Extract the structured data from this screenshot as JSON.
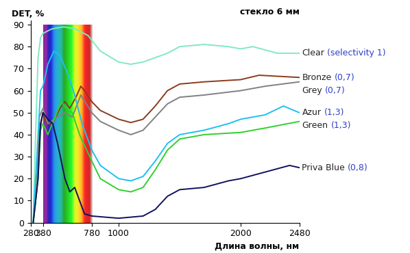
{
  "chart_data": {
    "type": "line",
    "title": "стекло 6 мм",
    "y_label": "DET, %",
    "x_label": "Длина волны, нм",
    "xlim": [
      280,
      2480
    ],
    "ylim": [
      0,
      92
    ],
    "xticks": [
      280,
      380,
      780,
      1000,
      2000,
      2480
    ],
    "yticks": [
      0,
      10,
      20,
      30,
      40,
      50,
      60,
      70,
      80,
      90
    ],
    "grid": false,
    "spectrum": {
      "x": [
        380,
        780
      ],
      "top": 90
    },
    "series": [
      {
        "name": "Clear",
        "selectivity_label": "(selectivity 1)",
        "color": "#7feabf",
        "x": [
          300,
          320,
          340,
          360,
          380,
          450,
          550,
          650,
          750,
          850,
          1000,
          1100,
          1200,
          1400,
          1500,
          1700,
          1900,
          2000,
          2100,
          2300,
          2480
        ],
        "values": [
          2,
          40,
          75,
          84,
          86,
          88,
          89,
          88,
          85,
          78,
          73,
          72,
          73,
          77,
          80,
          81,
          80,
          79,
          80,
          77,
          77
        ]
      },
      {
        "name": "Bronze",
        "selectivity_label": "(0,7)",
        "color": "#8b3a1a",
        "x": [
          300,
          330,
          350,
          380,
          400,
          450,
          520,
          560,
          600,
          650,
          690,
          720,
          780,
          850,
          1000,
          1100,
          1200,
          1300,
          1400,
          1500,
          1700,
          2000,
          2150,
          2480
        ],
        "values": [
          0,
          15,
          40,
          50,
          46,
          44,
          52,
          55,
          52,
          57,
          62,
          60,
          55,
          51,
          47,
          45.5,
          47,
          53,
          60,
          63,
          64,
          65,
          67,
          66
        ]
      },
      {
        "name": "Grey",
        "selectivity_label": "(0,7)",
        "color": "#808080",
        "x": [
          300,
          330,
          350,
          380,
          420,
          500,
          560,
          620,
          690,
          780,
          850,
          1000,
          1100,
          1200,
          1300,
          1400,
          1500,
          1700,
          2000,
          2200,
          2480
        ],
        "values": [
          0,
          20,
          48,
          52,
          45,
          48,
          50,
          48,
          58,
          50,
          46,
          42,
          40,
          42,
          48,
          54,
          57,
          58,
          60,
          62,
          64
        ]
      },
      {
        "name": "Azur",
        "selectivity_label": "(1,3)",
        "color": "#1ec0ef",
        "x": [
          300,
          330,
          360,
          380,
          420,
          470,
          520,
          580,
          640,
          700,
          780,
          850,
          1000,
          1100,
          1200,
          1300,
          1400,
          1500,
          1700,
          1900,
          2000,
          2200,
          2350,
          2480
        ],
        "values": [
          0,
          30,
          60,
          62,
          72,
          78,
          76,
          68,
          58,
          45,
          33,
          26,
          20,
          19,
          21,
          28,
          36,
          40,
          42,
          45,
          47,
          49,
          53,
          50
        ]
      },
      {
        "name": "Green",
        "selectivity_label": "(1,3)",
        "color": "#2fd02f",
        "x": [
          300,
          340,
          360,
          380,
          420,
          480,
          530,
          570,
          620,
          680,
          780,
          850,
          1000,
          1100,
          1200,
          1300,
          1400,
          1500,
          1700,
          2000,
          2200,
          2480
        ],
        "values": [
          0,
          20,
          42,
          45,
          40,
          48,
          55,
          52,
          50,
          40,
          28,
          20,
          15,
          14,
          16,
          24,
          33,
          38,
          40,
          41,
          43,
          46
        ]
      },
      {
        "name": "Priva Blue",
        "selectivity_label": "(0,8)",
        "color": "#10105e",
        "x": [
          300,
          340,
          360,
          380,
          420,
          460,
          500,
          560,
          600,
          640,
          680,
          720,
          780,
          1000,
          1200,
          1300,
          1400,
          1500,
          1700,
          1900,
          2000,
          2200,
          2400,
          2480
        ],
        "values": [
          0,
          20,
          45,
          50,
          47,
          45,
          36,
          20,
          14,
          16,
          10,
          4,
          3,
          2,
          3,
          6,
          12,
          15,
          16,
          19,
          20,
          23,
          26,
          25
        ]
      }
    ]
  }
}
